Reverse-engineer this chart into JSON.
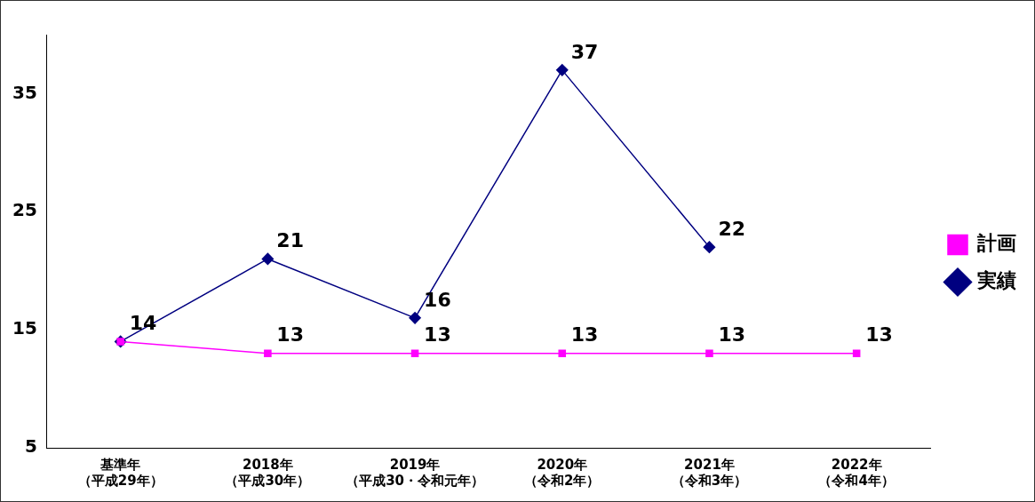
{
  "chart_data": {
    "type": "line",
    "categories": [
      "基準年（平成29年）",
      "2018年（平成30年）",
      "2019年（平成30・令和元年）",
      "2020年（令和2年）",
      "2021年（令和3年）",
      "2022年（令和4年）"
    ],
    "series": [
      {
        "name": "計画",
        "color": "#ff00ff",
        "marker": "square",
        "values": [
          14,
          13,
          13,
          13,
          13,
          13
        ],
        "value_labels": [
          null,
          "13",
          "13",
          "13",
          "13",
          "13"
        ]
      },
      {
        "name": "実績",
        "color": "#000080",
        "marker": "diamond",
        "values": [
          14,
          21,
          16,
          37,
          22,
          null
        ],
        "value_labels": [
          "14",
          "21",
          "16",
          "37",
          "22",
          null
        ]
      }
    ],
    "ylim": [
      5,
      40
    ],
    "yticks": [
      5,
      15,
      25,
      35
    ],
    "grid": false,
    "legend": "right",
    "line_style": "solid"
  }
}
